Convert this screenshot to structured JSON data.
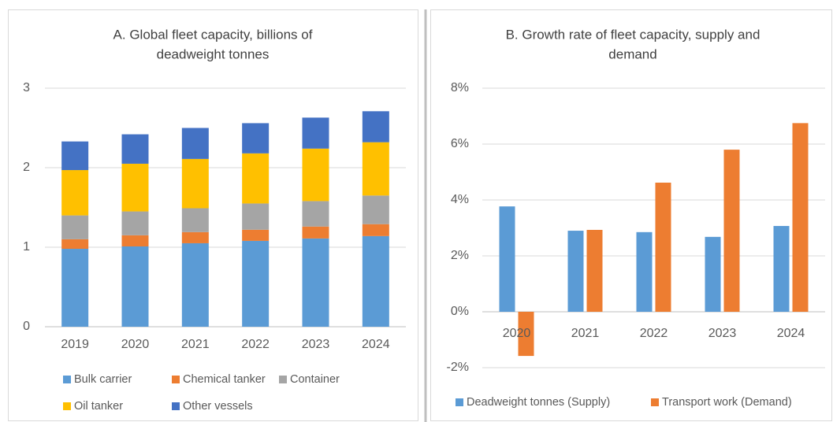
{
  "chart_data": [
    {
      "type": "bar",
      "stacked": true,
      "title": [
        "A. Global fleet capacity, billions of",
        "deadweight tonnes"
      ],
      "categories": [
        "2019",
        "2020",
        "2021",
        "2022",
        "2023",
        "2024"
      ],
      "series": [
        {
          "name": "Bulk carrier",
          "color": "#5b9bd5",
          "values": [
            0.98,
            1.01,
            1.05,
            1.08,
            1.11,
            1.14
          ]
        },
        {
          "name": "Chemical tanker",
          "color": "#ed7d31",
          "values": [
            0.12,
            0.14,
            0.14,
            0.14,
            0.15,
            0.15
          ]
        },
        {
          "name": "Container",
          "color": "#a5a5a5",
          "values": [
            0.3,
            0.3,
            0.3,
            0.33,
            0.32,
            0.36
          ]
        },
        {
          "name": "Oil tanker",
          "color": "#ffc000",
          "values": [
            0.57,
            0.6,
            0.62,
            0.63,
            0.66,
            0.67
          ]
        },
        {
          "name": "Other vessels",
          "color": "#4472c4",
          "values": [
            0.36,
            0.37,
            0.39,
            0.38,
            0.39,
            0.39
          ]
        }
      ],
      "ylim": [
        0,
        3
      ],
      "yticks": [
        0,
        1,
        2,
        3
      ],
      "grid": true,
      "legend": "bottom"
    },
    {
      "type": "bar",
      "stacked": false,
      "title": [
        "B. Growth rate of fleet capacity, supply and",
        "demand"
      ],
      "categories": [
        "2020",
        "2021",
        "2022",
        "2023",
        "2024"
      ],
      "series": [
        {
          "name": "Deadweight tonnes (Supply)",
          "color": "#5b9bd5",
          "values": [
            3.77,
            2.9,
            2.85,
            2.68,
            3.07
          ]
        },
        {
          "name": "Transport work (Demand)",
          "color": "#ed7d31",
          "values": [
            -1.58,
            2.93,
            4.62,
            5.8,
            6.75
          ]
        }
      ],
      "ylim": [
        -2,
        8
      ],
      "yticks": [
        {
          "value": -2,
          "label": "-2%"
        },
        {
          "value": 0,
          "label": "0%"
        },
        {
          "value": 2,
          "label": "2%"
        },
        {
          "value": 4,
          "label": "4%"
        },
        {
          "value": 6,
          "label": "6%"
        },
        {
          "value": 8,
          "label": "8%"
        }
      ],
      "grid": true,
      "legend": "bottom"
    }
  ]
}
